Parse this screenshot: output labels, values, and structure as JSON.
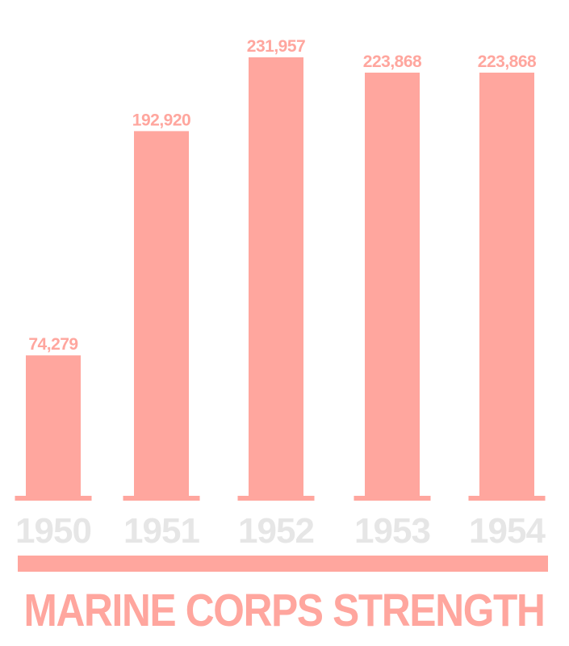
{
  "chart_data": {
    "type": "bar",
    "title": "MARINE CORPS STRENGTH",
    "categories": [
      "1950",
      "1951",
      "1952",
      "1953",
      "1954"
    ],
    "values": [
      74279,
      192920,
      231957,
      223868,
      223868
    ],
    "value_labels": [
      "74,279",
      "192,920",
      "231,957",
      "223,868",
      "223,868"
    ],
    "xlabel": "",
    "ylabel": "",
    "ylim": [
      0,
      231957
    ],
    "grid": false,
    "legend": "none",
    "colors": {
      "bar": "#ffa69e",
      "value_label": "#ffa69e",
      "tick_label": "#e6e6e6",
      "title": "#ffa69e",
      "title_rule": "#ffa69e"
    }
  }
}
